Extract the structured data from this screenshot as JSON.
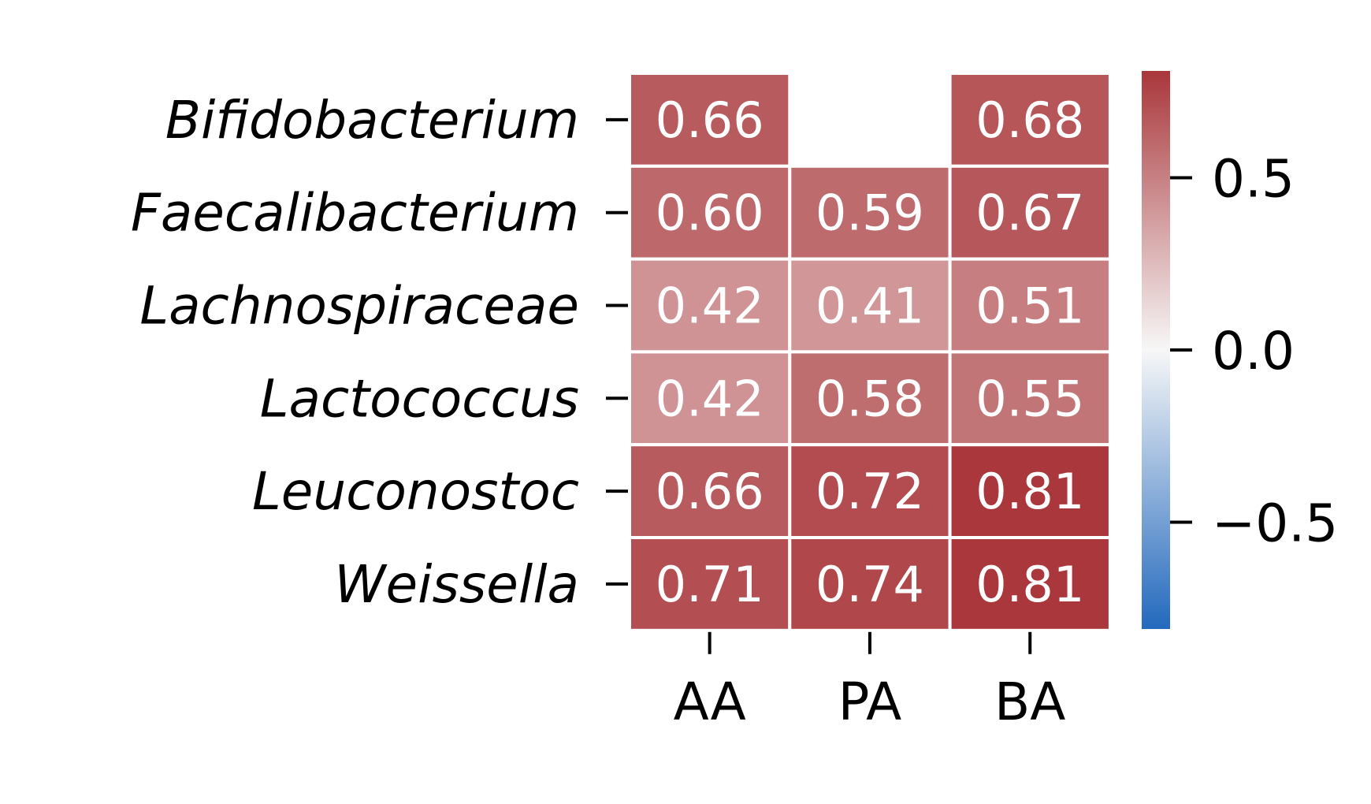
{
  "chart_data": {
    "type": "heatmap",
    "rows": [
      "Bifidobacterium",
      "Faecalibacterium",
      "Lachnospiraceae",
      "Lactococcus",
      "Leuconostoc",
      "Weissella"
    ],
    "columns": [
      "AA",
      "PA",
      "BA"
    ],
    "values": [
      [
        0.66,
        null,
        0.68
      ],
      [
        0.6,
        0.59,
        0.67
      ],
      [
        0.42,
        0.41,
        0.51
      ],
      [
        0.42,
        0.58,
        0.55
      ],
      [
        0.66,
        0.72,
        0.81
      ],
      [
        0.71,
        0.74,
        0.81
      ]
    ],
    "labels": [
      [
        "0.66",
        "",
        "0.68"
      ],
      [
        "0.60",
        "0.59",
        "0.67"
      ],
      [
        "0.42",
        "0.41",
        "0.51"
      ],
      [
        "0.42",
        "0.58",
        "0.55"
      ],
      [
        "0.66",
        "0.72",
        "0.81"
      ],
      [
        "0.71",
        "0.74",
        "0.81"
      ]
    ],
    "colorbar": {
      "colormap": "vlag",
      "vmin": -0.81,
      "vmax": 0.81,
      "ticks": [
        0.5,
        0.0,
        -0.5
      ],
      "tick_labels": [
        "0.5",
        "0.0",
        "−0.5"
      ],
      "colors": {
        "low": "#2369bd",
        "mid": "#f7f7f7",
        "high": "#a9373b"
      }
    },
    "grid": false,
    "cell_border_color": "#ffffff"
  }
}
